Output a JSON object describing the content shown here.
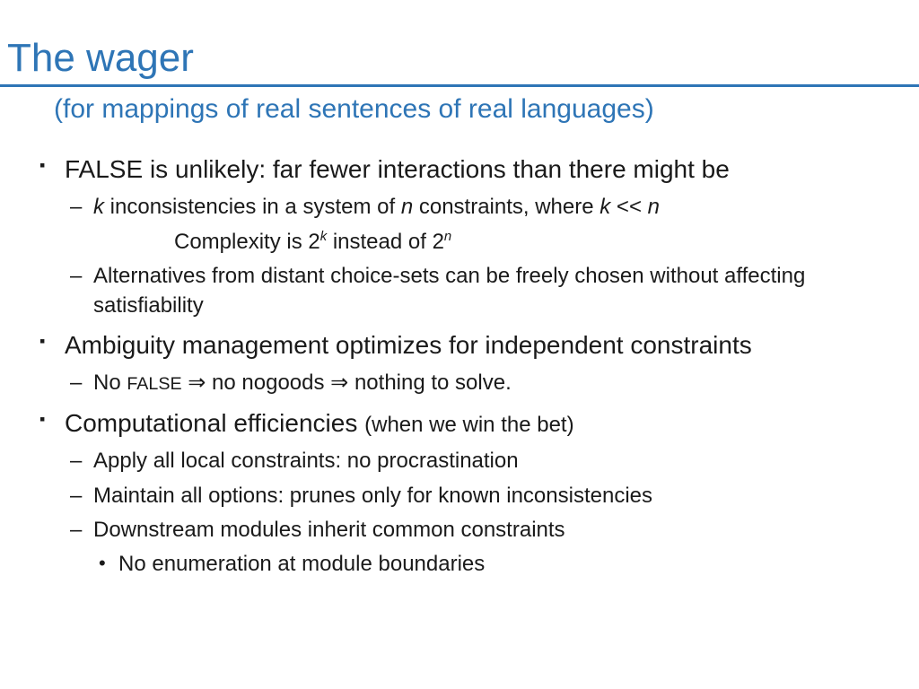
{
  "colors": {
    "accent": "#2e75b6",
    "text": "#1a1a1a",
    "background": "#ffffff"
  },
  "typography": {
    "title_fontsize": 44,
    "subtitle_fontsize": 30,
    "lvl1_fontsize": 28,
    "lvl2_fontsize": 24,
    "lvl3_fontsize": 24
  },
  "title": "The wager",
  "subtitle": "(for mappings of real sentences of real languages)",
  "bullets": {
    "b1": {
      "text": "FALSE is unlikely: far fewer interactions than there might be",
      "sub1": {
        "prefix": "k",
        "mid1": " inconsistencies in a system of ",
        "n": "n",
        "mid2": " constraints, where ",
        "k2": "k",
        "rel": " << ",
        "n2": "n"
      },
      "complexity": {
        "prefix": "Complexity is 2",
        "exp1": "k",
        "mid": " instead of 2",
        "exp2": "n"
      },
      "sub2": "Alternatives from distant choice-sets can be freely chosen without affecting satisfiability"
    },
    "b2": {
      "text": "Ambiguity management optimizes for independent constraints",
      "sub1": {
        "p1": "No ",
        "false": "FALSE",
        "p2": " no nogoods ",
        "p3": " nothing to solve."
      }
    },
    "b3": {
      "text": "Computational efficiencies ",
      "paren": "(when we win the bet)",
      "sub1": "Apply all local constraints:  no procrastination",
      "sub2": "Maintain all options:  prunes only for known inconsistencies",
      "sub3": "Downstream modules inherit common constraints",
      "sub3a": "No enumeration at module boundaries"
    }
  },
  "symbols": {
    "implies": "⇒"
  }
}
